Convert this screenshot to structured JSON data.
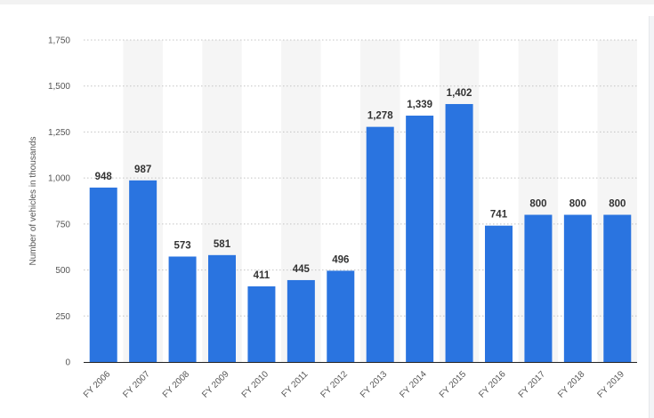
{
  "chart_data": {
    "type": "bar",
    "title": "",
    "xlabel": "",
    "ylabel": "Number of vehicles in thousands",
    "categories": [
      "FY 2006",
      "FY 2007",
      "FY 2008",
      "FY 2009",
      "FY 2010",
      "FY 2011",
      "FY 2012",
      "FY 2013",
      "FY 2014",
      "FY 2015",
      "FY 2016",
      "FY 2017",
      "FY 2018",
      "FY 2019"
    ],
    "values": [
      948,
      987,
      573,
      581,
      411,
      445,
      496,
      1278,
      1339,
      1402,
      741,
      800,
      800,
      800
    ],
    "value_labels": [
      "948",
      "987",
      "573",
      "581",
      "411",
      "445",
      "496",
      "1,278",
      "1,339",
      "1,402",
      "741",
      "800",
      "800",
      "800"
    ],
    "yticks": [
      0,
      250,
      500,
      750,
      1000,
      1250,
      1500,
      1750
    ],
    "ytick_labels": [
      "0",
      "250",
      "500",
      "750",
      "1,000",
      "1,250",
      "1,500",
      "1,750"
    ],
    "ylim": [
      0,
      1750
    ],
    "grid": true,
    "legend": "none",
    "bar_color": "#2a74e0",
    "band_color": "#f5f5f5"
  }
}
